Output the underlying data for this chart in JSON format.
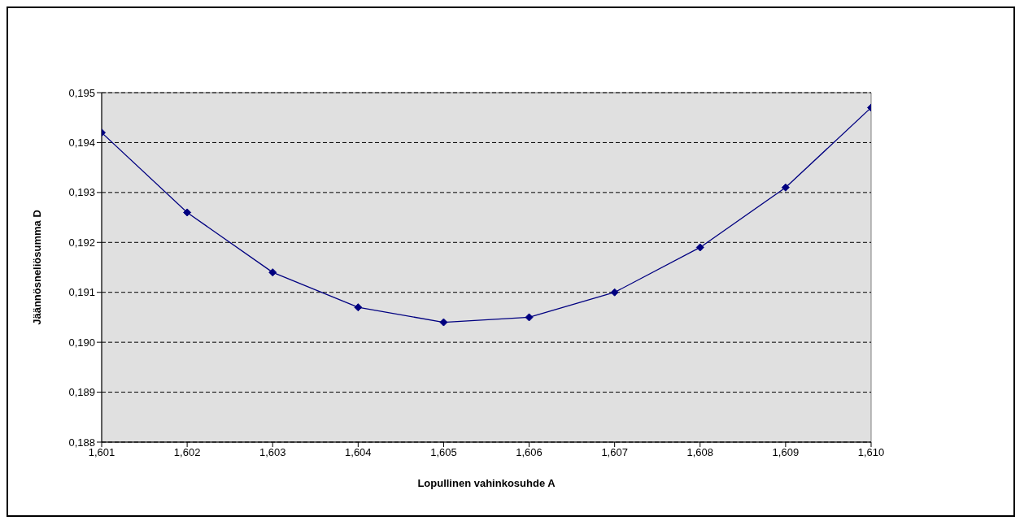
{
  "chart_data": {
    "type": "line",
    "xlabel": "Lopullinen vahinkosuhde A",
    "ylabel": "Jäännösneliösumma D",
    "x": [
      1.601,
      1.602,
      1.603,
      1.604,
      1.605,
      1.606,
      1.607,
      1.608,
      1.609,
      1.61
    ],
    "series": [
      {
        "color": "#000080",
        "values": [
          0.1942,
          0.1926,
          0.1914,
          0.1907,
          0.1904,
          0.1905,
          0.191,
          0.1919,
          0.1931,
          0.1947
        ]
      }
    ],
    "xlim": [
      1.601,
      1.61
    ],
    "xticks": [
      {
        "value": 1.601,
        "label": "1,601"
      },
      {
        "value": 1.602,
        "label": "1,602"
      },
      {
        "value": 1.603,
        "label": "1,603"
      },
      {
        "value": 1.604,
        "label": "1,604"
      },
      {
        "value": 1.605,
        "label": "1,605"
      },
      {
        "value": 1.606,
        "label": "1,606"
      },
      {
        "value": 1.607,
        "label": "1,607"
      },
      {
        "value": 1.608,
        "label": "1,608"
      },
      {
        "value": 1.609,
        "label": "1,609"
      },
      {
        "value": 1.61,
        "label": "1,610"
      }
    ],
    "ylim": [
      0.188,
      0.195
    ],
    "yticks": [
      {
        "value": 0.188,
        "label": "0,188"
      },
      {
        "value": 0.189,
        "label": "0,189"
      },
      {
        "value": 0.19,
        "label": "0,190"
      },
      {
        "value": 0.191,
        "label": "0,191"
      },
      {
        "value": 0.192,
        "label": "0,192"
      },
      {
        "value": 0.193,
        "label": "0,193"
      },
      {
        "value": 0.194,
        "label": "0,194"
      },
      {
        "value": 0.195,
        "label": "0,195"
      }
    ],
    "grid": "y",
    "marker": "diamond",
    "line_style": "solid"
  }
}
